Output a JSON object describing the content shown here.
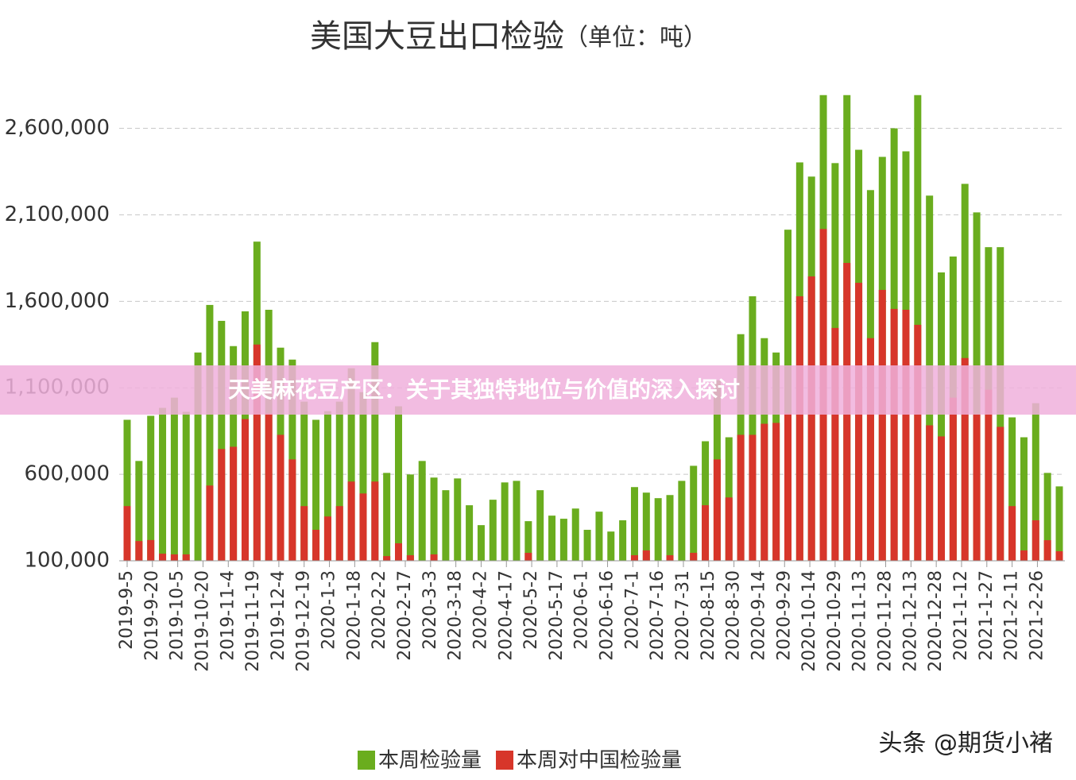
{
  "chart_data": {
    "type": "bar",
    "title": "美国大豆出口检验",
    "subtitle": "（单位：吨）",
    "x": [
      "2019-9-5",
      "2019-9-12",
      "2019-9-19",
      "2019-9-26",
      "2019-10-3",
      "2019-10-10",
      "2019-10-17",
      "2019-10-24",
      "2019-10-31",
      "2019-11-7",
      "2019-11-14",
      "2019-11-21",
      "2019-11-28",
      "2019-12-5",
      "2019-12-12",
      "2019-12-19",
      "2019-12-26",
      "2020-1-2",
      "2020-1-9",
      "2020-1-16",
      "2020-1-23",
      "2020-1-30",
      "2020-2-6",
      "2020-2-13",
      "2020-2-20",
      "2020-2-27",
      "2020-3-5",
      "2020-3-12",
      "2020-3-19",
      "2020-3-26",
      "2020-4-2",
      "2020-4-9",
      "2020-4-16",
      "2020-4-23",
      "2020-4-30",
      "2020-5-7",
      "2020-5-14",
      "2020-5-21",
      "2020-5-28",
      "2020-6-4",
      "2020-6-11",
      "2020-6-18",
      "2020-6-25",
      "2020-7-2",
      "2020-7-9",
      "2020-7-16",
      "2020-7-23",
      "2020-7-30",
      "2020-8-6",
      "2020-8-13",
      "2020-8-20",
      "2020-8-27",
      "2020-9-3",
      "2020-9-10",
      "2020-9-17",
      "2020-9-24",
      "2020-10-1",
      "2020-10-8",
      "2020-10-15",
      "2020-10-22",
      "2020-10-29",
      "2020-11-5",
      "2020-11-12",
      "2020-11-19",
      "2020-11-26",
      "2020-12-3",
      "2020-12-10",
      "2020-12-17",
      "2020-12-24",
      "2020-12-31",
      "2021-1-7",
      "2021-1-14",
      "2021-1-21",
      "2021-1-28",
      "2021-2-4",
      "2021-2-11",
      "2021-2-18",
      "2021-2-25",
      "2021-3-4",
      "2021-3-11"
    ],
    "series": [
      {
        "name": "本周检验量",
        "color": "#6aad1e",
        "values": [
          915000,
          677000,
          938000,
          984000,
          1043000,
          961000,
          1304000,
          1579000,
          1487000,
          1341000,
          1542000,
          1945000,
          1551000,
          1332000,
          1263000,
          1020000,
          915000,
          965000,
          1020000,
          1213000,
          1075000,
          1364000,
          608000,
          993000,
          599000,
          677000,
          581000,
          508000,
          576000,
          421000,
          306000,
          453000,
          553000,
          562000,
          329000,
          508000,
          361000,
          343000,
          402000,
          279000,
          384000,
          269000,
          334000,
          526000,
          494000,
          462000,
          480000,
          562000,
          649000,
          791000,
          1144000,
          814000,
          1410000,
          1629000,
          1387000,
          1304000,
          2014000,
          2403000,
          2321000,
          2792000,
          2399000,
          2792000,
          2476000,
          2243000,
          2435000,
          2600000,
          2467000,
          2792000,
          2211000,
          1767000,
          1859000,
          2279000,
          2114000,
          1913000,
          1913000,
          929000,
          814000,
          1011000,
          608000,
          530000
        ]
      },
      {
        "name": "本周对中国检验量",
        "color": "#d7362a",
        "values": [
          416000,
          214000,
          220000,
          141000,
          137000,
          137000,
          0,
          535000,
          746000,
          759000,
          919000,
          1350000,
          952000,
          828000,
          686000,
          416000,
          279000,
          356000,
          416000,
          558000,
          489000,
          558000,
          127000,
          201000,
          132000,
          0,
          137000,
          0,
          0,
          0,
          0,
          0,
          0,
          0,
          146000,
          0,
          0,
          0,
          0,
          0,
          0,
          0,
          0,
          132000,
          160000,
          0,
          132000,
          0,
          146000,
          421000,
          686000,
          466000,
          828000,
          828000,
          892000,
          897000,
          952000,
          1629000,
          1744000,
          2018000,
          1446000,
          1822000,
          1707000,
          1387000,
          1666000,
          1556000,
          1551000,
          1464000,
          883000,
          819000,
          1043000,
          1272000,
          947000,
          1089000,
          874000,
          416000,
          160000,
          334000,
          219000,
          155000
        ]
      }
    ],
    "xlim": [
      "2019-9-5",
      "2021-3-11"
    ],
    "xticks": [
      "2019-9-5",
      "2019-9-20",
      "2019-10-5",
      "2019-10-20",
      "2019-11-4",
      "2019-11-19",
      "2019-12-4",
      "2019-12-19",
      "2020-1-3",
      "2020-1-18",
      "2020-2-2",
      "2020-2-17",
      "2020-3-3",
      "2020-3-18",
      "2020-4-2",
      "2020-4-17",
      "2020-5-2",
      "2020-5-17",
      "2020-6-1",
      "2020-6-16",
      "2020-7-1",
      "2020-7-16",
      "2020-7-31",
      "2020-8-15",
      "2020-8-30",
      "2020-9-14",
      "2020-9-29",
      "2020-10-14",
      "2020-10-29",
      "2020-11-13",
      "2020-11-28",
      "2020-12-13",
      "2020-12-28",
      "2021-1-12",
      "2021-1-27",
      "2021-2-11",
      "2021-2-26"
    ],
    "ylim": [
      100000,
      2800000
    ],
    "yticks": [
      {
        "value": 100000,
        "label": "100,000"
      },
      {
        "value": 600000,
        "label": "600,000"
      },
      {
        "value": 1100000,
        "label": "1,100,000"
      },
      {
        "value": 1600000,
        "label": "1,600,000"
      },
      {
        "value": 2100000,
        "label": "2,100,000"
      },
      {
        "value": 2600000,
        "label": "2,600,000"
      }
    ],
    "grid": true,
    "legend": "bottom"
  },
  "overlay": {
    "banner": "天美麻花豆产区：关于其独特地位与价值的深入探讨",
    "watermark": "头条 @期货小褚"
  }
}
